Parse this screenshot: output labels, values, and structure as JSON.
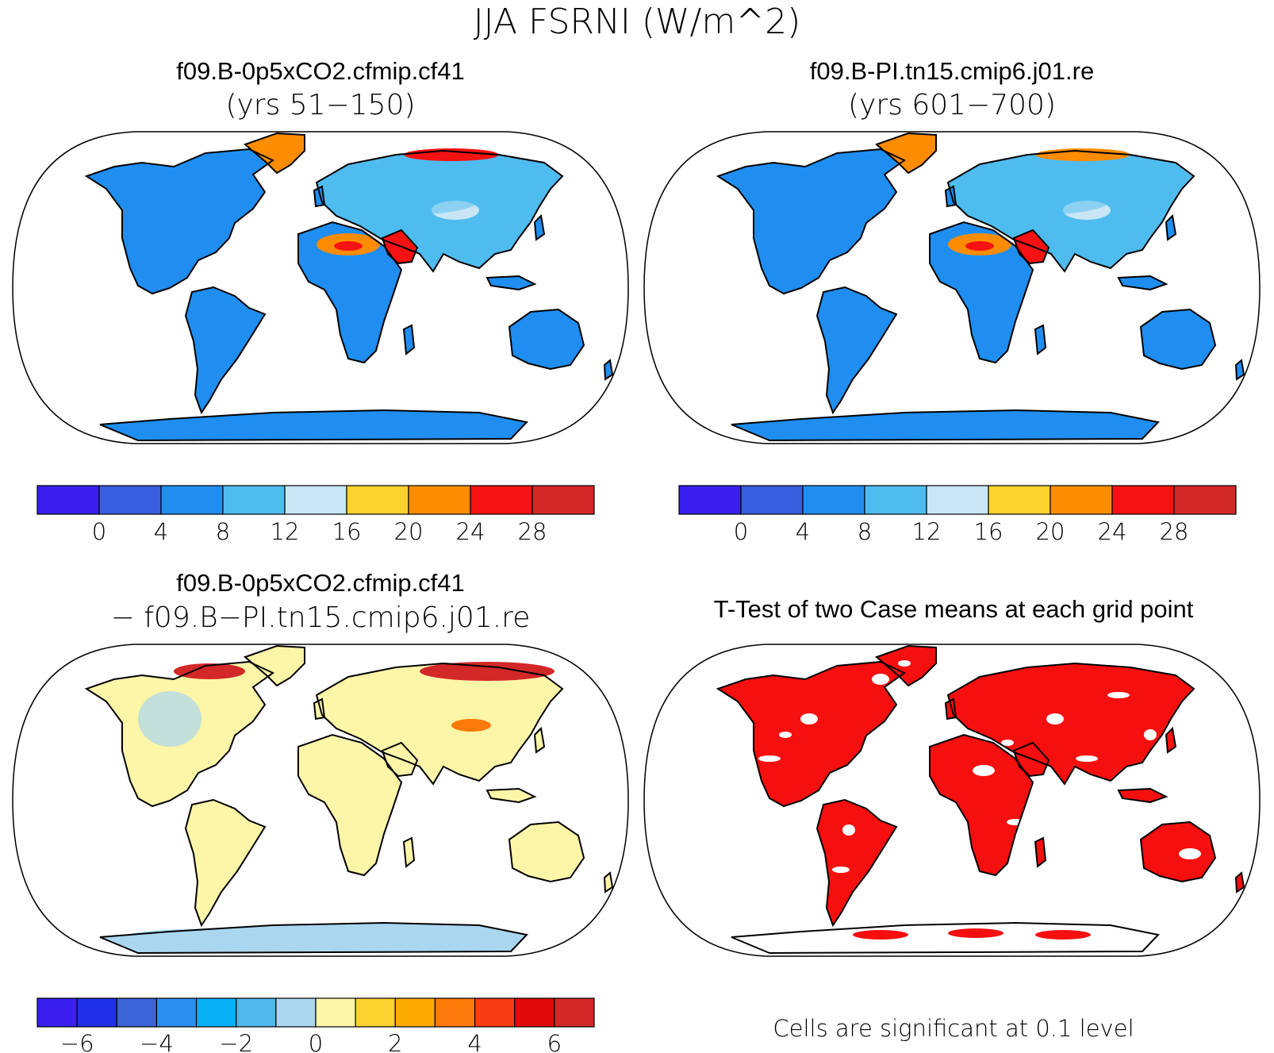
{
  "figure": {
    "title": "JJA FSRNI (W/m^2)"
  },
  "panels": [
    {
      "id": "case1",
      "title": "f09.B-0p5xCO2.cfmip.cf41",
      "subtitle": "(yrs 51−150)",
      "kind": "field"
    },
    {
      "id": "case2",
      "title": "f09.B-PI.tn15.cmip6.j01.re",
      "subtitle": "(yrs 601−700)",
      "kind": "field"
    },
    {
      "id": "diff",
      "title": "f09.B-0p5xCO2.cfmip.cf41",
      "subtitle": "− f09.B−PI.tn15.cmip6.j01.re",
      "kind": "diff"
    },
    {
      "id": "ttest",
      "title": "T-Test of two Case means at each grid point",
      "subtitle": "",
      "kind": "ttest"
    }
  ],
  "colorbars": {
    "field": {
      "colors": [
        "#3a1ff0",
        "#3a5ee0",
        "#1f8ef0",
        "#4fbcf0",
        "#c8e6f5",
        "#fcd22e",
        "#fe8c00",
        "#f51212",
        "#d22828"
      ],
      "labels": [
        "0",
        "4",
        "8",
        "12",
        "16",
        "20",
        "24",
        "28"
      ]
    },
    "diff": {
      "colors": [
        "#3a1ff0",
        "#1f30e8",
        "#3a64d8",
        "#2b8ef0",
        "#08b0f5",
        "#50b8ec",
        "#aad6f0",
        "#fdf5a8",
        "#fcd22e",
        "#fcaa00",
        "#fd7a0a",
        "#f83c14",
        "#e00a0a",
        "#d22828"
      ],
      "labels": [
        "−6",
        "−4",
        "−2",
        "0",
        "2",
        "4",
        "6"
      ]
    }
  },
  "significance_note": "Cells are significant at 0.1 level",
  "chart_data": [
    {
      "type": "heatmap",
      "title": "f09.B-0p5xCO2.cfmip.cf41",
      "colorbar_levels": [
        0,
        4,
        8,
        12,
        16,
        20,
        24,
        28
      ],
      "regions": [
        {
          "name": "Antarctica",
          "level": 4
        },
        {
          "name": "Australia",
          "level": 4
        },
        {
          "name": "South America",
          "level": 4
        },
        {
          "name": "Southern Africa",
          "level": 4
        },
        {
          "name": "Sahara",
          "level": 20
        },
        {
          "name": "Arabian Peninsula",
          "level": 24
        },
        {
          "name": "Greenland",
          "level": 20
        },
        {
          "name": "Siberia Arctic coast",
          "level": 24
        },
        {
          "name": "North America",
          "level": 4
        },
        {
          "name": "Eurasia",
          "level": 8
        },
        {
          "name": "Tibetan Plateau",
          "level": 12
        }
      ]
    },
    {
      "type": "heatmap",
      "title": "f09.B-PI.tn15.cmip6.j01.re",
      "colorbar_levels": [
        0,
        4,
        8,
        12,
        16,
        20,
        24,
        28
      ],
      "regions": [
        {
          "name": "Antarctica",
          "level": 4
        },
        {
          "name": "Australia",
          "level": 4
        },
        {
          "name": "South America",
          "level": 4
        },
        {
          "name": "Southern Africa",
          "level": 4
        },
        {
          "name": "Sahara",
          "level": 20
        },
        {
          "name": "Arabian Peninsula",
          "level": 24
        },
        {
          "name": "Greenland",
          "level": 20
        },
        {
          "name": "Siberia Arctic coast",
          "level": 20
        },
        {
          "name": "North America",
          "level": 4
        },
        {
          "name": "Eurasia",
          "level": 8
        },
        {
          "name": "Tibetan Plateau",
          "level": 12
        }
      ]
    },
    {
      "type": "heatmap",
      "title": "f09.B-0p5xCO2.cfmip.cf41 − f09.B−PI.tn15.cmip6.j01.re",
      "colorbar_levels": [
        -7,
        -6,
        -5,
        -4,
        -3,
        -2,
        -1,
        0,
        1,
        2,
        3,
        4,
        5,
        6,
        7
      ],
      "regions": [
        {
          "name": "Antarctica",
          "level": -0.5
        },
        {
          "name": "Australia",
          "level": 0.5
        },
        {
          "name": "South America",
          "level": 0.5
        },
        {
          "name": "Africa",
          "level": 0.5
        },
        {
          "name": "Eurasia",
          "level": 0.5
        },
        {
          "name": "Siberia Arctic coast",
          "level": 6
        },
        {
          "name": "Canadian Arctic",
          "level": 6
        },
        {
          "name": "North America",
          "level": 0.5
        },
        {
          "name": "Tibetan Plateau",
          "level": 3
        }
      ]
    },
    {
      "type": "heatmap",
      "title": "T-Test of two Case means at each grid point",
      "note": "Cells are significant at 0.1 level",
      "significant_color": "#f50f0f",
      "significant_regions": [
        "North America",
        "South America",
        "Africa",
        "Eurasia",
        "Australia",
        "Antarctica (partial)"
      ]
    }
  ]
}
